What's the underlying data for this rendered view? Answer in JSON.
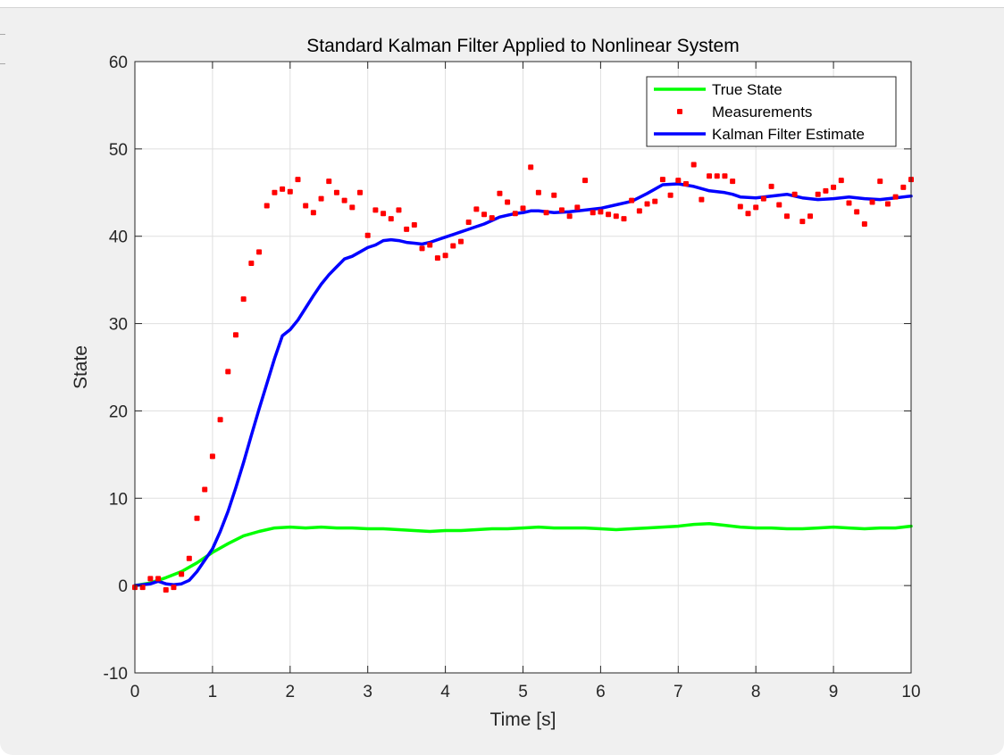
{
  "chart_data": {
    "type": "line",
    "title": "Standard Kalman Filter Applied to Nonlinear System",
    "xlabel": "Time [s]",
    "ylabel": "State",
    "xlim": [
      0,
      10
    ],
    "ylim": [
      -10,
      60
    ],
    "xticks": [
      0,
      1,
      2,
      3,
      4,
      5,
      6,
      7,
      8,
      9,
      10
    ],
    "yticks": [
      -10,
      0,
      10,
      20,
      30,
      40,
      50,
      60
    ],
    "grid": true,
    "legend_position": "top-right",
    "series": [
      {
        "name": "True State",
        "style": "line",
        "color": "#00ff00",
        "x": [
          0,
          0.2,
          0.4,
          0.6,
          0.8,
          1.0,
          1.2,
          1.4,
          1.6,
          1.8,
          2.0,
          2.2,
          2.4,
          2.6,
          2.8,
          3.0,
          3.2,
          3.4,
          3.6,
          3.8,
          4.0,
          4.2,
          4.4,
          4.6,
          4.8,
          5.0,
          5.2,
          5.4,
          5.6,
          5.8,
          6.0,
          6.2,
          6.4,
          6.6,
          6.8,
          7.0,
          7.2,
          7.4,
          7.6,
          7.8,
          8.0,
          8.2,
          8.4,
          8.6,
          8.8,
          9.0,
          9.2,
          9.4,
          9.6,
          9.8,
          10.0
        ],
        "y": [
          0,
          0.3,
          0.9,
          1.6,
          2.6,
          3.8,
          4.8,
          5.7,
          6.2,
          6.6,
          6.7,
          6.6,
          6.7,
          6.6,
          6.6,
          6.5,
          6.5,
          6.4,
          6.3,
          6.2,
          6.3,
          6.3,
          6.4,
          6.5,
          6.5,
          6.6,
          6.7,
          6.6,
          6.6,
          6.6,
          6.5,
          6.4,
          6.5,
          6.6,
          6.7,
          6.8,
          7.0,
          7.1,
          6.9,
          6.7,
          6.6,
          6.6,
          6.5,
          6.5,
          6.6,
          6.7,
          6.6,
          6.5,
          6.6,
          6.6,
          6.8
        ]
      },
      {
        "name": "Measurements",
        "style": "markers",
        "color": "#ff0000",
        "x": [
          0.0,
          0.1,
          0.2,
          0.3,
          0.4,
          0.5,
          0.6,
          0.7,
          0.8,
          0.9,
          1.0,
          1.1,
          1.2,
          1.3,
          1.4,
          1.5,
          1.6,
          1.7,
          1.8,
          1.9,
          2.0,
          2.1,
          2.2,
          2.3,
          2.4,
          2.5,
          2.6,
          2.7,
          2.8,
          2.9,
          3.0,
          3.1,
          3.2,
          3.3,
          3.4,
          3.5,
          3.6,
          3.7,
          3.8,
          3.9,
          4.0,
          4.1,
          4.2,
          4.3,
          4.4,
          4.5,
          4.6,
          4.7,
          4.8,
          4.9,
          5.0,
          5.1,
          5.2,
          5.3,
          5.4,
          5.5,
          5.6,
          5.7,
          5.8,
          5.9,
          6.0,
          6.1,
          6.2,
          6.3,
          6.4,
          6.5,
          6.6,
          6.7,
          6.8,
          6.9,
          7.0,
          7.1,
          7.2,
          7.3,
          7.4,
          7.5,
          7.6,
          7.7,
          7.8,
          7.9,
          8.0,
          8.1,
          8.2,
          8.3,
          8.4,
          8.5,
          8.6,
          8.7,
          8.8,
          8.9,
          9.0,
          9.1,
          9.2,
          9.3,
          9.4,
          9.5,
          9.6,
          9.7,
          9.8,
          9.9,
          10.0
        ],
        "y": [
          -0.2,
          -0.2,
          0.8,
          0.8,
          -0.5,
          -0.2,
          1.3,
          3.1,
          7.7,
          11.0,
          14.8,
          19.0,
          24.5,
          28.7,
          32.8,
          36.9,
          38.2,
          43.5,
          45.0,
          45.4,
          45.1,
          46.5,
          43.5,
          42.7,
          44.3,
          46.3,
          45.0,
          44.1,
          43.3,
          45.0,
          40.1,
          43.0,
          42.6,
          42.0,
          43.0,
          40.8,
          41.3,
          38.6,
          39.0,
          37.5,
          37.8,
          38.9,
          39.4,
          41.6,
          43.1,
          42.5,
          42.1,
          44.9,
          43.9,
          42.6,
          43.2,
          47.9,
          45.0,
          42.7,
          44.7,
          43.0,
          42.3,
          43.3,
          46.4,
          42.7,
          42.8,
          42.5,
          42.3,
          42.0,
          44.1,
          42.9,
          43.7,
          44.0,
          46.5,
          44.7,
          46.4,
          46.0,
          48.2,
          44.2,
          46.9,
          46.9,
          46.9,
          46.3,
          43.4,
          42.6,
          43.3,
          44.3,
          45.7,
          43.6,
          42.3,
          44.8,
          41.7,
          42.3,
          44.8,
          45.2,
          45.6,
          46.4,
          43.8,
          42.8,
          41.4,
          43.9,
          46.3,
          43.7,
          44.5,
          45.6,
          46.5
        ]
      },
      {
        "name": "Kalman Filter Estimate",
        "style": "line",
        "color": "#0000ff",
        "x": [
          0,
          0.2,
          0.3,
          0.4,
          0.5,
          0.6,
          0.7,
          0.8,
          0.9,
          1.0,
          1.1,
          1.2,
          1.3,
          1.4,
          1.5,
          1.6,
          1.7,
          1.8,
          1.9,
          2.0,
          2.1,
          2.2,
          2.3,
          2.4,
          2.5,
          2.6,
          2.7,
          2.8,
          2.9,
          3.0,
          3.1,
          3.2,
          3.3,
          3.4,
          3.5,
          3.6,
          3.7,
          3.8,
          3.9,
          4.0,
          4.1,
          4.2,
          4.3,
          4.4,
          4.5,
          4.6,
          4.7,
          4.8,
          4.9,
          5.0,
          5.1,
          5.2,
          5.4,
          5.6,
          5.8,
          6.0,
          6.2,
          6.4,
          6.6,
          6.8,
          7.0,
          7.2,
          7.4,
          7.6,
          7.7,
          7.8,
          8.0,
          8.2,
          8.4,
          8.6,
          8.8,
          9.0,
          9.2,
          9.4,
          9.6,
          9.8,
          10.0
        ],
        "y": [
          0,
          0.2,
          0.5,
          0.2,
          0.1,
          0.2,
          0.6,
          1.6,
          2.9,
          4.2,
          6.2,
          8.5,
          11.2,
          14.1,
          17.2,
          20.2,
          23.1,
          26.0,
          28.6,
          29.3,
          30.4,
          31.8,
          33.2,
          34.5,
          35.6,
          36.5,
          37.4,
          37.7,
          38.2,
          38.7,
          39.0,
          39.5,
          39.6,
          39.5,
          39.3,
          39.2,
          39.1,
          39.3,
          39.6,
          39.9,
          40.2,
          40.5,
          40.8,
          41.1,
          41.4,
          41.8,
          42.2,
          42.4,
          42.6,
          42.7,
          42.9,
          42.9,
          42.7,
          42.8,
          43.0,
          43.2,
          43.6,
          44.0,
          44.9,
          45.9,
          46.0,
          45.7,
          45.2,
          45.0,
          44.8,
          44.5,
          44.4,
          44.6,
          44.8,
          44.4,
          44.2,
          44.3,
          44.5,
          44.3,
          44.2,
          44.4,
          44.6
        ]
      }
    ]
  }
}
